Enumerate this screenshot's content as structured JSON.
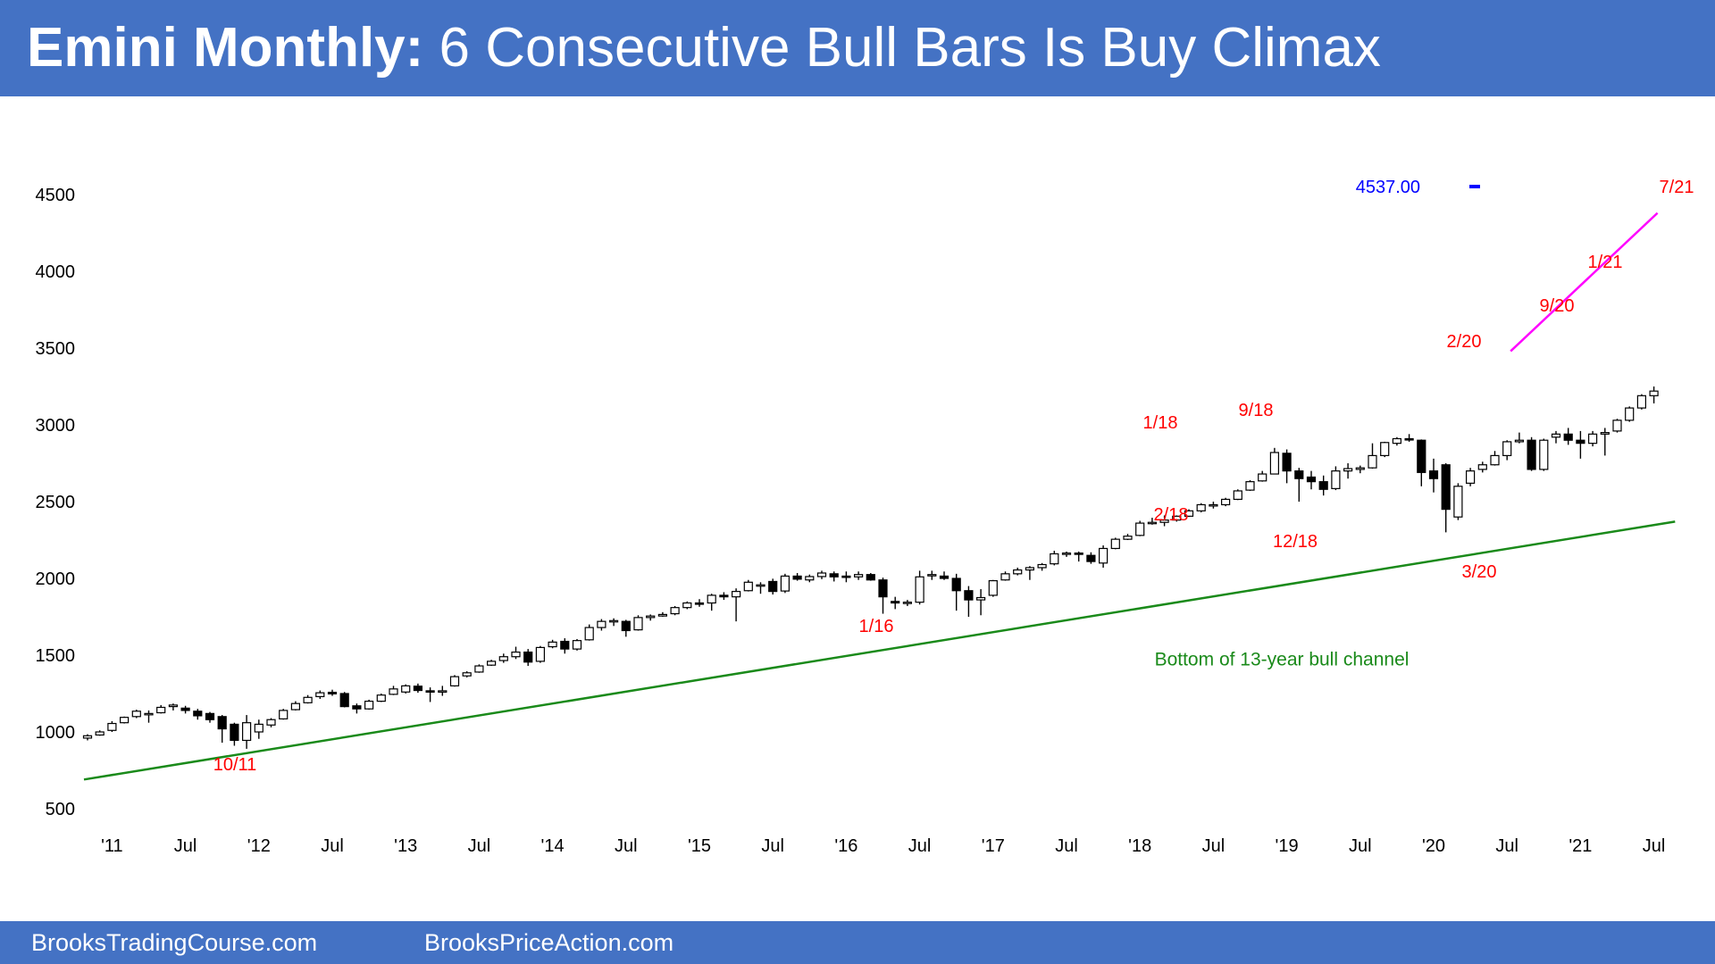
{
  "header": {
    "title_bold": "Emini Monthly:",
    "title_rest": "6 Consecutive Bull Bars Is Buy Climax",
    "background": "#4472c4"
  },
  "footer": {
    "left_text": "BrooksTradingCourse.com",
    "right_text": "BrooksPriceAction.com"
  },
  "chart_data": {
    "type": "candlestick",
    "title": "",
    "ylim": [
      500,
      4500
    ],
    "y_ticks": [
      "4500",
      "4000",
      "3500",
      "3000",
      "2500",
      "2000",
      "1500",
      "1000",
      "500"
    ],
    "x_ticks": [
      {
        "label": "'11",
        "date": "2011-01"
      },
      {
        "label": "Jul",
        "date": "2011-07"
      },
      {
        "label": "'12",
        "date": "2012-01"
      },
      {
        "label": "Jul",
        "date": "2012-07"
      },
      {
        "label": "'13",
        "date": "2013-01"
      },
      {
        "label": "Jul",
        "date": "2013-07"
      },
      {
        "label": "'14",
        "date": "2014-01"
      },
      {
        "label": "Jul",
        "date": "2014-07"
      },
      {
        "label": "'15",
        "date": "2015-01"
      },
      {
        "label": "Jul",
        "date": "2015-07"
      },
      {
        "label": "'16",
        "date": "2016-01"
      },
      {
        "label": "Jul",
        "date": "2016-07"
      },
      {
        "label": "'17",
        "date": "2017-01"
      },
      {
        "label": "Jul",
        "date": "2017-07"
      },
      {
        "label": "'18",
        "date": "2018-01"
      },
      {
        "label": "Jul",
        "date": "2018-07"
      },
      {
        "label": "'19",
        "date": "2019-01"
      },
      {
        "label": "Jul",
        "date": "2019-07"
      },
      {
        "label": "'20",
        "date": "2020-01"
      },
      {
        "label": "Jul",
        "date": "2020-07"
      },
      {
        "label": "'21",
        "date": "2021-01"
      },
      {
        "label": "Jul",
        "date": "2021-07"
      }
    ],
    "candles": [
      {
        "date": "2010-11",
        "o": 960,
        "h": 985,
        "l": 945,
        "c": 975
      },
      {
        "date": "2010-12",
        "o": 980,
        "h": 1010,
        "l": 975,
        "c": 1000
      },
      {
        "date": "2011-01",
        "o": 1010,
        "h": 1070,
        "l": 1000,
        "c": 1055
      },
      {
        "date": "2011-02",
        "o": 1060,
        "h": 1100,
        "l": 1055,
        "c": 1095
      },
      {
        "date": "2011-03",
        "o": 1100,
        "h": 1145,
        "l": 1090,
        "c": 1135
      },
      {
        "date": "2011-04",
        "o": 1115,
        "h": 1140,
        "l": 1060,
        "c": 1120
      },
      {
        "date": "2011-05",
        "o": 1125,
        "h": 1175,
        "l": 1120,
        "c": 1160
      },
      {
        "date": "2011-06",
        "o": 1165,
        "h": 1185,
        "l": 1140,
        "c": 1175
      },
      {
        "date": "2011-07",
        "o": 1155,
        "h": 1170,
        "l": 1120,
        "c": 1140
      },
      {
        "date": "2011-08",
        "o": 1135,
        "h": 1150,
        "l": 1080,
        "c": 1105
      },
      {
        "date": "2011-09",
        "o": 1120,
        "h": 1130,
        "l": 1060,
        "c": 1080
      },
      {
        "date": "2011-10",
        "o": 1100,
        "h": 1110,
        "l": 930,
        "c": 1020
      },
      {
        "date": "2011-11",
        "o": 1050,
        "h": 1060,
        "l": 910,
        "c": 945
      },
      {
        "date": "2011-12",
        "o": 945,
        "h": 1110,
        "l": 890,
        "c": 1060
      },
      {
        "date": "2012-01",
        "o": 1000,
        "h": 1080,
        "l": 955,
        "c": 1050
      },
      {
        "date": "2012-02",
        "o": 1045,
        "h": 1090,
        "l": 1030,
        "c": 1080
      },
      {
        "date": "2012-03",
        "o": 1085,
        "h": 1150,
        "l": 1080,
        "c": 1140
      },
      {
        "date": "2012-04",
        "o": 1145,
        "h": 1200,
        "l": 1140,
        "c": 1185
      },
      {
        "date": "2012-05",
        "o": 1190,
        "h": 1240,
        "l": 1185,
        "c": 1225
      },
      {
        "date": "2012-06",
        "o": 1230,
        "h": 1270,
        "l": 1215,
        "c": 1255
      },
      {
        "date": "2012-07",
        "o": 1258,
        "h": 1275,
        "l": 1235,
        "c": 1248
      },
      {
        "date": "2012-08",
        "o": 1250,
        "h": 1260,
        "l": 1160,
        "c": 1165
      },
      {
        "date": "2012-09",
        "o": 1170,
        "h": 1185,
        "l": 1120,
        "c": 1150
      },
      {
        "date": "2012-10",
        "o": 1150,
        "h": 1210,
        "l": 1145,
        "c": 1200
      },
      {
        "date": "2012-11",
        "o": 1200,
        "h": 1250,
        "l": 1195,
        "c": 1240
      },
      {
        "date": "2012-12",
        "o": 1245,
        "h": 1300,
        "l": 1240,
        "c": 1280
      },
      {
        "date": "2013-01",
        "o": 1260,
        "h": 1310,
        "l": 1250,
        "c": 1300
      },
      {
        "date": "2013-02",
        "o": 1298,
        "h": 1315,
        "l": 1255,
        "c": 1270
      },
      {
        "date": "2013-03",
        "o": 1268,
        "h": 1290,
        "l": 1195,
        "c": 1265
      },
      {
        "date": "2013-04",
        "o": 1262,
        "h": 1300,
        "l": 1235,
        "c": 1268
      },
      {
        "date": "2013-05",
        "o": 1300,
        "h": 1370,
        "l": 1295,
        "c": 1360
      },
      {
        "date": "2013-06",
        "o": 1365,
        "h": 1395,
        "l": 1355,
        "c": 1385
      },
      {
        "date": "2013-07",
        "o": 1390,
        "h": 1440,
        "l": 1385,
        "c": 1430
      },
      {
        "date": "2013-08",
        "o": 1435,
        "h": 1470,
        "l": 1430,
        "c": 1460
      },
      {
        "date": "2013-09",
        "o": 1465,
        "h": 1510,
        "l": 1450,
        "c": 1490
      },
      {
        "date": "2013-10",
        "o": 1490,
        "h": 1555,
        "l": 1475,
        "c": 1520
      },
      {
        "date": "2013-11",
        "o": 1520,
        "h": 1540,
        "l": 1430,
        "c": 1455
      },
      {
        "date": "2013-12",
        "o": 1460,
        "h": 1560,
        "l": 1450,
        "c": 1550
      },
      {
        "date": "2014-01",
        "o": 1555,
        "h": 1600,
        "l": 1545,
        "c": 1585
      },
      {
        "date": "2014-02",
        "o": 1590,
        "h": 1610,
        "l": 1510,
        "c": 1540
      },
      {
        "date": "2014-03",
        "o": 1540,
        "h": 1605,
        "l": 1530,
        "c": 1595
      },
      {
        "date": "2014-04",
        "o": 1600,
        "h": 1700,
        "l": 1595,
        "c": 1680
      },
      {
        "date": "2014-05",
        "o": 1680,
        "h": 1735,
        "l": 1660,
        "c": 1720
      },
      {
        "date": "2014-06",
        "o": 1722,
        "h": 1740,
        "l": 1690,
        "c": 1725
      },
      {
        "date": "2014-07",
        "o": 1720,
        "h": 1730,
        "l": 1620,
        "c": 1660
      },
      {
        "date": "2014-08",
        "o": 1665,
        "h": 1760,
        "l": 1660,
        "c": 1745
      },
      {
        "date": "2014-09",
        "o": 1745,
        "h": 1765,
        "l": 1725,
        "c": 1755
      },
      {
        "date": "2014-10",
        "o": 1755,
        "h": 1780,
        "l": 1750,
        "c": 1765
      },
      {
        "date": "2014-11",
        "o": 1770,
        "h": 1820,
        "l": 1760,
        "c": 1810
      },
      {
        "date": "2014-12",
        "o": 1810,
        "h": 1850,
        "l": 1800,
        "c": 1840
      },
      {
        "date": "2015-01",
        "o": 1840,
        "h": 1865,
        "l": 1815,
        "c": 1835
      },
      {
        "date": "2015-02",
        "o": 1840,
        "h": 1900,
        "l": 1790,
        "c": 1890
      },
      {
        "date": "2015-03",
        "o": 1890,
        "h": 1910,
        "l": 1860,
        "c": 1880
      },
      {
        "date": "2015-04",
        "o": 1880,
        "h": 1935,
        "l": 1720,
        "c": 1915
      },
      {
        "date": "2015-05",
        "o": 1920,
        "h": 1990,
        "l": 1915,
        "c": 1975
      },
      {
        "date": "2015-06",
        "o": 1955,
        "h": 1975,
        "l": 1900,
        "c": 1958
      },
      {
        "date": "2015-07",
        "o": 1980,
        "h": 1998,
        "l": 1895,
        "c": 1915
      },
      {
        "date": "2015-08",
        "o": 1918,
        "h": 2030,
        "l": 1905,
        "c": 2015
      },
      {
        "date": "2015-09",
        "o": 2015,
        "h": 2035,
        "l": 1985,
        "c": 1995
      },
      {
        "date": "2015-10",
        "o": 1990,
        "h": 2025,
        "l": 1975,
        "c": 2012
      },
      {
        "date": "2015-11",
        "o": 2012,
        "h": 2050,
        "l": 1995,
        "c": 2035
      },
      {
        "date": "2015-12",
        "o": 2030,
        "h": 2045,
        "l": 1980,
        "c": 2010
      },
      {
        "date": "2016-01",
        "o": 2015,
        "h": 2045,
        "l": 1975,
        "c": 2010
      },
      {
        "date": "2016-02",
        "o": 2010,
        "h": 2045,
        "l": 1990,
        "c": 2025
      },
      {
        "date": "2016-03",
        "o": 2025,
        "h": 2035,
        "l": 1985,
        "c": 1990
      },
      {
        "date": "2016-04",
        "o": 1990,
        "h": 2005,
        "l": 1770,
        "c": 1880
      },
      {
        "date": "2016-05",
        "o": 1850,
        "h": 1880,
        "l": 1800,
        "c": 1840
      },
      {
        "date": "2016-06",
        "o": 1840,
        "h": 1860,
        "l": 1820,
        "c": 1845
      },
      {
        "date": "2016-07",
        "o": 1845,
        "h": 2050,
        "l": 1830,
        "c": 2010
      },
      {
        "date": "2016-08",
        "o": 2020,
        "h": 2050,
        "l": 1990,
        "c": 2025
      },
      {
        "date": "2016-09",
        "o": 2015,
        "h": 2045,
        "l": 1990,
        "c": 2000
      },
      {
        "date": "2016-10",
        "o": 2000,
        "h": 2030,
        "l": 1790,
        "c": 1920
      },
      {
        "date": "2016-11",
        "o": 1920,
        "h": 1950,
        "l": 1750,
        "c": 1860
      },
      {
        "date": "2016-12",
        "o": 1860,
        "h": 1930,
        "l": 1760,
        "c": 1875
      },
      {
        "date": "2017-01",
        "o": 1890,
        "h": 1990,
        "l": 1880,
        "c": 1985
      },
      {
        "date": "2017-02",
        "o": 1990,
        "h": 2045,
        "l": 1985,
        "c": 2030
      },
      {
        "date": "2017-03",
        "o": 2030,
        "h": 2070,
        "l": 2020,
        "c": 2055
      },
      {
        "date": "2017-04",
        "o": 2055,
        "h": 2080,
        "l": 1990,
        "c": 2070
      },
      {
        "date": "2017-05",
        "o": 2070,
        "h": 2100,
        "l": 2050,
        "c": 2090
      },
      {
        "date": "2017-06",
        "o": 2095,
        "h": 2180,
        "l": 2085,
        "c": 2160
      },
      {
        "date": "2017-07",
        "o": 2160,
        "h": 2175,
        "l": 2140,
        "c": 2165
      },
      {
        "date": "2017-08",
        "o": 2165,
        "h": 2175,
        "l": 2110,
        "c": 2160
      },
      {
        "date": "2017-09",
        "o": 2150,
        "h": 2170,
        "l": 2095,
        "c": 2110
      },
      {
        "date": "2017-10",
        "o": 2100,
        "h": 2215,
        "l": 2070,
        "c": 2195
      },
      {
        "date": "2017-11",
        "o": 2195,
        "h": 2265,
        "l": 2190,
        "c": 2255
      },
      {
        "date": "2017-12",
        "o": 2255,
        "h": 2290,
        "l": 2250,
        "c": 2275
      },
      {
        "date": "2018-01",
        "o": 2280,
        "h": 2375,
        "l": 2275,
        "c": 2360
      },
      {
        "date": "2018-02",
        "o": 2360,
        "h": 2395,
        "l": 2350,
        "c": 2365
      },
      {
        "date": "2018-03",
        "o": 2365,
        "h": 2410,
        "l": 2340,
        "c": 2380
      },
      {
        "date": "2018-04",
        "o": 2380,
        "h": 2410,
        "l": 2370,
        "c": 2405
      },
      {
        "date": "2018-05",
        "o": 2405,
        "h": 2450,
        "l": 2400,
        "c": 2440
      },
      {
        "date": "2018-06",
        "o": 2440,
        "h": 2490,
        "l": 2430,
        "c": 2480
      },
      {
        "date": "2018-07",
        "o": 2475,
        "h": 2500,
        "l": 2455,
        "c": 2480
      },
      {
        "date": "2018-08",
        "o": 2480,
        "h": 2525,
        "l": 2470,
        "c": 2515
      },
      {
        "date": "2018-09",
        "o": 2515,
        "h": 2580,
        "l": 2510,
        "c": 2570
      },
      {
        "date": "2018-10",
        "o": 2575,
        "h": 2640,
        "l": 2570,
        "c": 2630
      },
      {
        "date": "2018-11",
        "o": 2635,
        "h": 2700,
        "l": 2630,
        "c": 2680
      },
      {
        "date": "2018-12",
        "o": 2680,
        "h": 2850,
        "l": 2680,
        "c": 2820
      },
      {
        "date": "2019-01",
        "o": 2815,
        "h": 2840,
        "l": 2620,
        "c": 2700
      },
      {
        "date": "2019-02",
        "o": 2700,
        "h": 2720,
        "l": 2500,
        "c": 2650
      },
      {
        "date": "2019-03",
        "o": 2660,
        "h": 2700,
        "l": 2580,
        "c": 2630
      },
      {
        "date": "2019-04",
        "o": 2630,
        "h": 2670,
        "l": 2540,
        "c": 2580
      },
      {
        "date": "2019-05",
        "o": 2585,
        "h": 2730,
        "l": 2575,
        "c": 2700
      },
      {
        "date": "2019-06",
        "o": 2700,
        "h": 2750,
        "l": 2650,
        "c": 2715
      },
      {
        "date": "2019-07",
        "o": 2710,
        "h": 2735,
        "l": 2685,
        "c": 2720
      },
      {
        "date": "2019-08",
        "o": 2720,
        "h": 2880,
        "l": 2715,
        "c": 2800
      },
      {
        "date": "2019-09",
        "o": 2800,
        "h": 2890,
        "l": 2790,
        "c": 2885
      },
      {
        "date": "2019-10",
        "o": 2880,
        "h": 2920,
        "l": 2865,
        "c": 2910
      },
      {
        "date": "2019-11",
        "o": 2910,
        "h": 2940,
        "l": 2890,
        "c": 2905
      },
      {
        "date": "2019-12",
        "o": 2900,
        "h": 2905,
        "l": 2600,
        "c": 2690
      },
      {
        "date": "2020-01",
        "o": 2700,
        "h": 2780,
        "l": 2560,
        "c": 2650
      },
      {
        "date": "2020-02",
        "o": 2740,
        "h": 2750,
        "l": 2300,
        "c": 2450
      },
      {
        "date": "2020-03",
        "o": 2400,
        "h": 2620,
        "l": 2380,
        "c": 2600
      },
      {
        "date": "2020-04",
        "o": 2620,
        "h": 2720,
        "l": 2600,
        "c": 2700
      },
      {
        "date": "2020-05",
        "o": 2710,
        "h": 2760,
        "l": 2690,
        "c": 2740
      },
      {
        "date": "2020-06",
        "o": 2740,
        "h": 2830,
        "l": 2735,
        "c": 2800
      },
      {
        "date": "2020-07",
        "o": 2800,
        "h": 2900,
        "l": 2770,
        "c": 2890
      },
      {
        "date": "2020-08",
        "o": 2890,
        "h": 2950,
        "l": 2880,
        "c": 2900
      },
      {
        "date": "2020-09",
        "o": 2900,
        "h": 2920,
        "l": 2700,
        "c": 2710
      },
      {
        "date": "2020-10",
        "o": 2710,
        "h": 2910,
        "l": 2700,
        "c": 2900
      },
      {
        "date": "2020-11",
        "o": 2920,
        "h": 2960,
        "l": 2880,
        "c": 2940
      },
      {
        "date": "2020-12",
        "o": 2940,
        "h": 2980,
        "l": 2870,
        "c": 2900
      },
      {
        "date": "2021-01",
        "o": 2900,
        "h": 2960,
        "l": 2780,
        "c": 2880
      },
      {
        "date": "2021-02",
        "o": 2880,
        "h": 2960,
        "l": 2860,
        "c": 2940
      },
      {
        "date": "2021-03",
        "o": 2940,
        "h": 2980,
        "l": 2800,
        "c": 2950
      },
      {
        "date": "2021-04",
        "o": 2960,
        "h": 3040,
        "l": 2950,
        "c": 3030
      },
      {
        "date": "2021-05",
        "o": 3030,
        "h": 3120,
        "l": 3020,
        "c": 3110
      },
      {
        "date": "2021-06",
        "o": 3110,
        "h": 3200,
        "l": 3100,
        "c": 3190
      },
      {
        "date": "2021-07",
        "o": 3190,
        "h": 3250,
        "l": 3140,
        "c": 3220
      }
    ],
    "annotations": [
      {
        "text": "7/21",
        "color": "#ff0000"
      },
      {
        "text": "1/21",
        "color": "#ff0000"
      },
      {
        "text": "9/20",
        "color": "#ff0000"
      },
      {
        "text": "2/20",
        "color": "#ff0000"
      },
      {
        "text": "3/20",
        "color": "#ff0000"
      },
      {
        "text": "12/18",
        "color": "#ff0000"
      },
      {
        "text": "9/18",
        "color": "#ff0000"
      },
      {
        "text": "1/18",
        "color": "#ff0000"
      },
      {
        "text": "2/18",
        "color": "#ff0000"
      },
      {
        "text": "1/16",
        "color": "#ff0000"
      },
      {
        "text": "10/11",
        "color": "#ff0000"
      }
    ],
    "target_label": {
      "text": "4537.00",
      "value": 4537,
      "color": "#0000ff"
    },
    "channel_line": {
      "label": "Bottom of 13-year bull channel",
      "color": "#1a8a1a",
      "from": {
        "date": "2010-11",
        "value": 690
      },
      "to": {
        "date": "2021-08",
        "value": 2370
      }
    },
    "trend_line": {
      "color": "#ff00ff",
      "from": {
        "date": "2020-07",
        "value": 3480
      },
      "to": {
        "date": "2021-07",
        "value": 4380
      }
    },
    "grid": false,
    "colors": {
      "bull": "#ffffff",
      "bear": "#000000",
      "outline": "#000000",
      "title_band": "#4472c4"
    }
  }
}
